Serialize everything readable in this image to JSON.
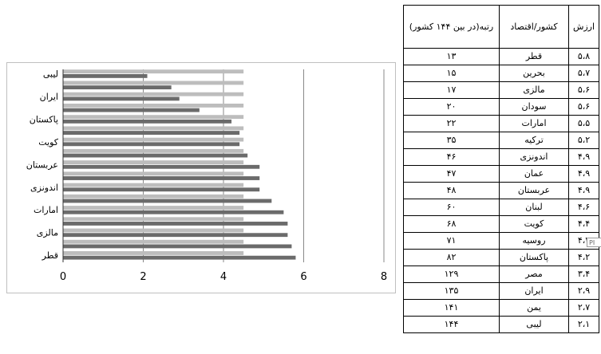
{
  "chart_data": {
    "type": "bar",
    "orientation": "horizontal",
    "categories_bottom_to_top": [
      "قطر",
      "بحرین",
      "مالزی",
      "سودان",
      "امارات",
      "ترکیه",
      "اندونزی",
      "عمان",
      "عربستان",
      "لبنان",
      "کویت",
      "روسیه",
      "پاکستان",
      "مصر",
      "ایران",
      "یمن",
      "لیبی"
    ],
    "category_labels_shown": [
      "قطر",
      "مالزی",
      "امارات",
      "اندونزی",
      "عربستان",
      "کویت",
      "پاکستان",
      "ایران",
      "لیبی"
    ],
    "values": [
      5.8,
      5.7,
      5.6,
      5.6,
      5.5,
      5.2,
      4.9,
      4.9,
      4.9,
      4.6,
      4.4,
      4.4,
      4.2,
      3.4,
      2.9,
      2.7,
      2.1
    ],
    "background_bar_value": 4.5,
    "xlim": [
      0,
      8
    ],
    "x_ticks": [
      "0",
      "2",
      "4",
      "6",
      "8"
    ],
    "grid": "vertical lines",
    "colors": {
      "bar": "#6b6b6b",
      "background_bar": "#bdbdbd",
      "grid": "#888888"
    }
  },
  "table": {
    "headers": {
      "value": "ارزش",
      "country": "کشور/اقتصاد",
      "rank": "رتبه(در بین ۱۴۴ کشور)"
    },
    "rows": [
      {
        "value": "۵،۸",
        "country": "قطر",
        "rank": "۱۳"
      },
      {
        "value": "۵،۷",
        "country": "بحرین",
        "rank": "۱۵"
      },
      {
        "value": "۵،۶",
        "country": "مالزی",
        "rank": "۱۷"
      },
      {
        "value": "۵،۶",
        "country": "سودان",
        "rank": "۲۰"
      },
      {
        "value": "۵،۵",
        "country": "امارات",
        "rank": "۲۲"
      },
      {
        "value": "۵،۲",
        "country": "ترکیه",
        "rank": "۳۵"
      },
      {
        "value": "۴،۹",
        "country": "اندونزی",
        "rank": "۴۶"
      },
      {
        "value": "۴،۹",
        "country": "عمان",
        "rank": "۴۷"
      },
      {
        "value": "۴،۹",
        "country": "عربستان",
        "rank": "۴۸"
      },
      {
        "value": "۴،۶",
        "country": "لبنان",
        "rank": "۶۰"
      },
      {
        "value": "۴،۴",
        "country": "کویت",
        "rank": "۶۸"
      },
      {
        "value": "۴،۴",
        "country": "روسیه",
        "rank": "۷۱"
      },
      {
        "value": "۴،۲",
        "country": "پاکستان",
        "rank": "۸۲"
      },
      {
        "value": "۳،۴",
        "country": "مصر",
        "rank": "۱۲۹"
      },
      {
        "value": "۲،۹",
        "country": "ایران",
        "rank": "۱۳۵"
      },
      {
        "value": "۲،۷",
        "country": "یمن",
        "rank": "۱۴۱"
      },
      {
        "value": "۲،۱",
        "country": "لیبی",
        "rank": "۱۴۴"
      }
    ]
  },
  "overlay_tag": "PI"
}
